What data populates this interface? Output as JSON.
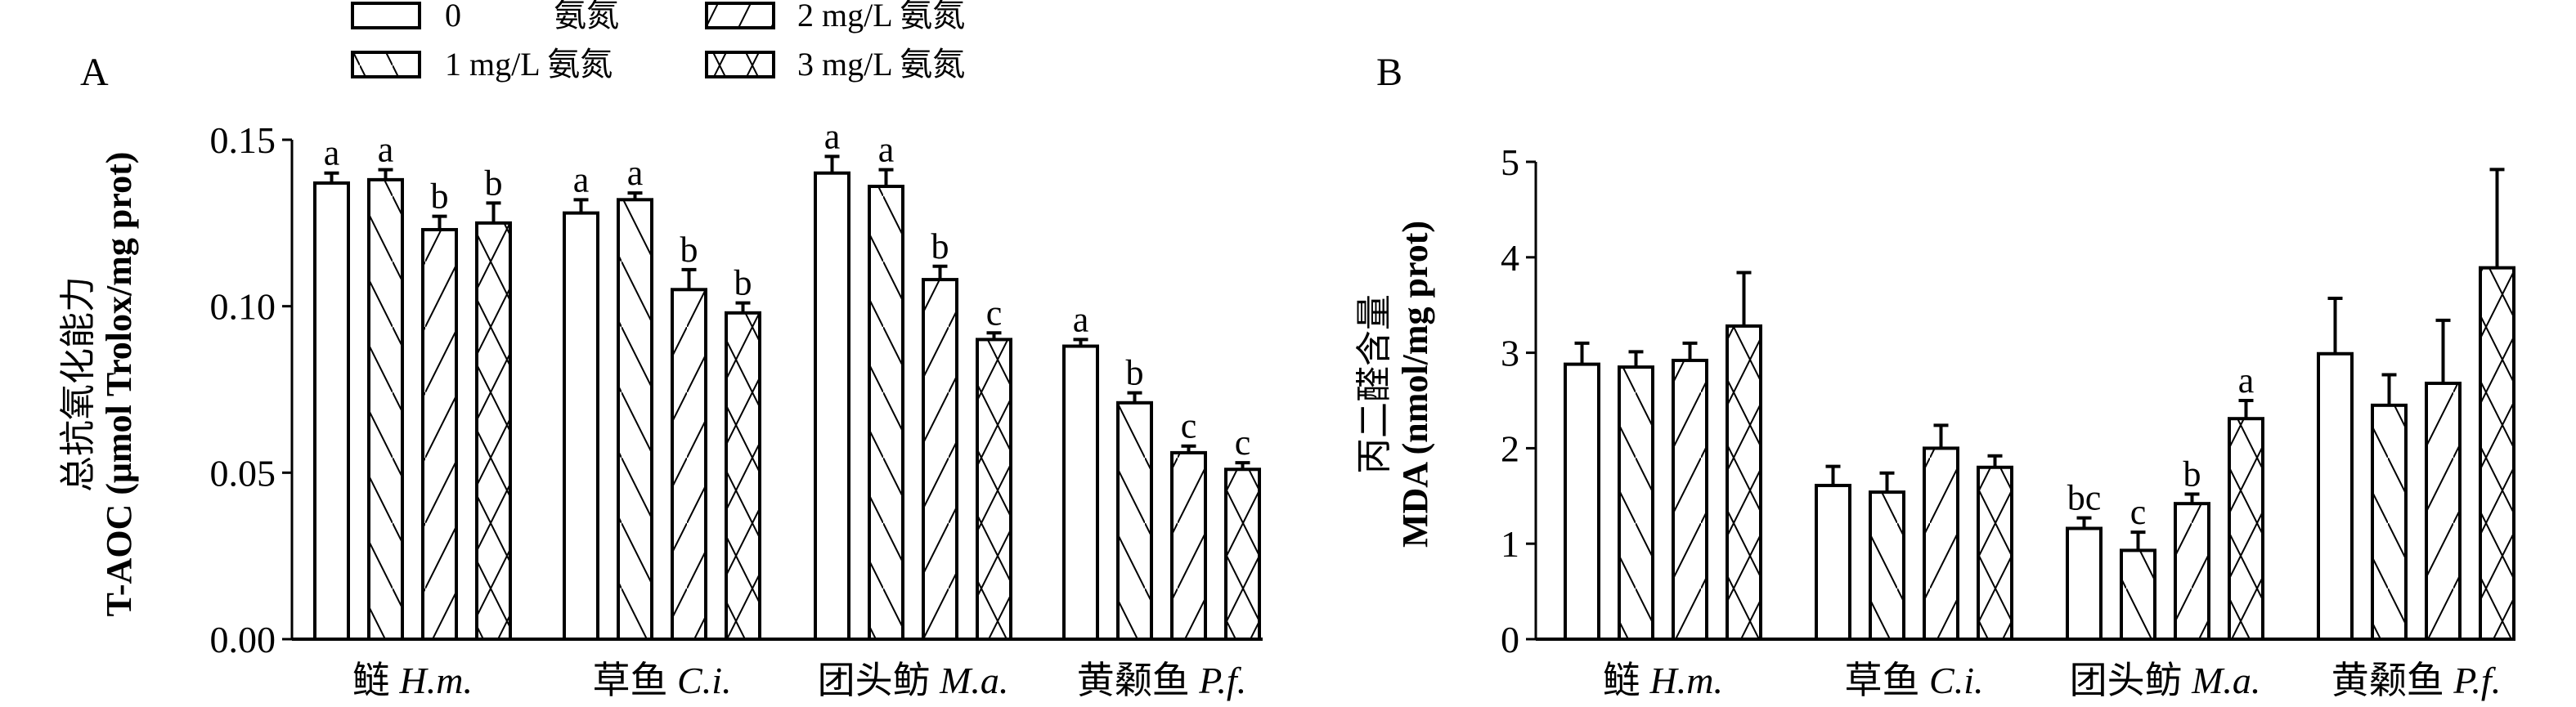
{
  "legend": {
    "items": [
      {
        "label": "0",
        "unit": "氨氮",
        "pattern": "none"
      },
      {
        "label": "1 mg/L 氨氮",
        "pattern": "back"
      },
      {
        "label": "2 mg/L 氨氮",
        "pattern": "fwd"
      },
      {
        "label": "3 mg/L 氨氮",
        "pattern": "cross"
      }
    ]
  },
  "chart_data": [
    {
      "panel": "A",
      "type": "bar",
      "ylabel_cn": "总抗氧化能力",
      "ylabel": "T-AOC (μmol Trolox/mg prot)",
      "ylim": [
        0,
        0.15
      ],
      "yticks": [
        "0.00",
        "0.05",
        "0.10",
        "0.15"
      ],
      "ytick_values": [
        0,
        0.05,
        0.1,
        0.15
      ],
      "categories": [
        "鲢 H.m.",
        "草鱼 C.i.",
        "团头鲂 M.a.",
        "黄颡鱼 P.f."
      ],
      "categories_cn": [
        "鲢",
        "草鱼",
        "团头鲂",
        "黄颡鱼"
      ],
      "categories_latin": [
        "H.m.",
        "C.i.",
        "M.a.",
        "P.f."
      ],
      "series": [
        {
          "name": "0 氨氮",
          "values": [
            0.137,
            0.128,
            0.14,
            0.088
          ],
          "errors": [
            0.003,
            0.004,
            0.005,
            0.002
          ],
          "letters": [
            "a",
            "a",
            "a",
            "a"
          ]
        },
        {
          "name": "1 mg/L 氨氮",
          "values": [
            0.138,
            0.132,
            0.136,
            0.071
          ],
          "errors": [
            0.003,
            0.002,
            0.005,
            0.003
          ],
          "letters": [
            "a",
            "a",
            "a",
            "b"
          ]
        },
        {
          "name": "2 mg/L 氨氮",
          "values": [
            0.123,
            0.105,
            0.108,
            0.056
          ],
          "errors": [
            0.004,
            0.006,
            0.004,
            0.002
          ],
          "letters": [
            "b",
            "b",
            "b",
            "c"
          ]
        },
        {
          "name": "3 mg/L 氨氮",
          "values": [
            0.125,
            0.098,
            0.09,
            0.051
          ],
          "errors": [
            0.006,
            0.003,
            0.002,
            0.002
          ],
          "letters": [
            "b",
            "b",
            "c",
            "c"
          ]
        }
      ]
    },
    {
      "panel": "B",
      "type": "bar",
      "ylabel_cn": "丙二醛含量",
      "ylabel": "MDA (nmol/mg prot)",
      "ylim": [
        0,
        5
      ],
      "yticks": [
        "0",
        "1",
        "2",
        "3",
        "4",
        "5"
      ],
      "ytick_values": [
        0,
        1,
        2,
        3,
        4,
        5
      ],
      "categories": [
        "鲢 H.m.",
        "草鱼 C.i.",
        "团头鲂 M.a.",
        "黄颡鱼 P.f."
      ],
      "categories_cn": [
        "鲢",
        "草鱼",
        "团头鲂",
        "黄颡鱼"
      ],
      "categories_latin": [
        "H.m.",
        "C.i.",
        "M.a.",
        "P.f."
      ],
      "series": [
        {
          "name": "0 氨氮",
          "values": [
            2.88,
            1.61,
            1.16,
            2.99
          ],
          "errors": [
            0.22,
            0.2,
            0.11,
            0.58
          ],
          "letters": [
            "",
            "",
            "bc",
            ""
          ]
        },
        {
          "name": "1 mg/L 氨氮",
          "values": [
            2.85,
            1.54,
            0.93,
            2.45
          ],
          "errors": [
            0.16,
            0.2,
            0.19,
            0.32
          ],
          "letters": [
            "",
            "",
            "c",
            ""
          ]
        },
        {
          "name": "2 mg/L 氨氮",
          "values": [
            2.92,
            2.0,
            1.42,
            2.68
          ],
          "errors": [
            0.18,
            0.24,
            0.1,
            0.66
          ],
          "letters": [
            "",
            "",
            "b",
            ""
          ]
        },
        {
          "name": "3 mg/L 氨氮",
          "values": [
            3.28,
            1.8,
            2.31,
            3.89
          ],
          "errors": [
            0.56,
            0.12,
            0.19,
            1.03
          ],
          "letters": [
            "",
            "",
            "a",
            ""
          ]
        }
      ]
    }
  ]
}
